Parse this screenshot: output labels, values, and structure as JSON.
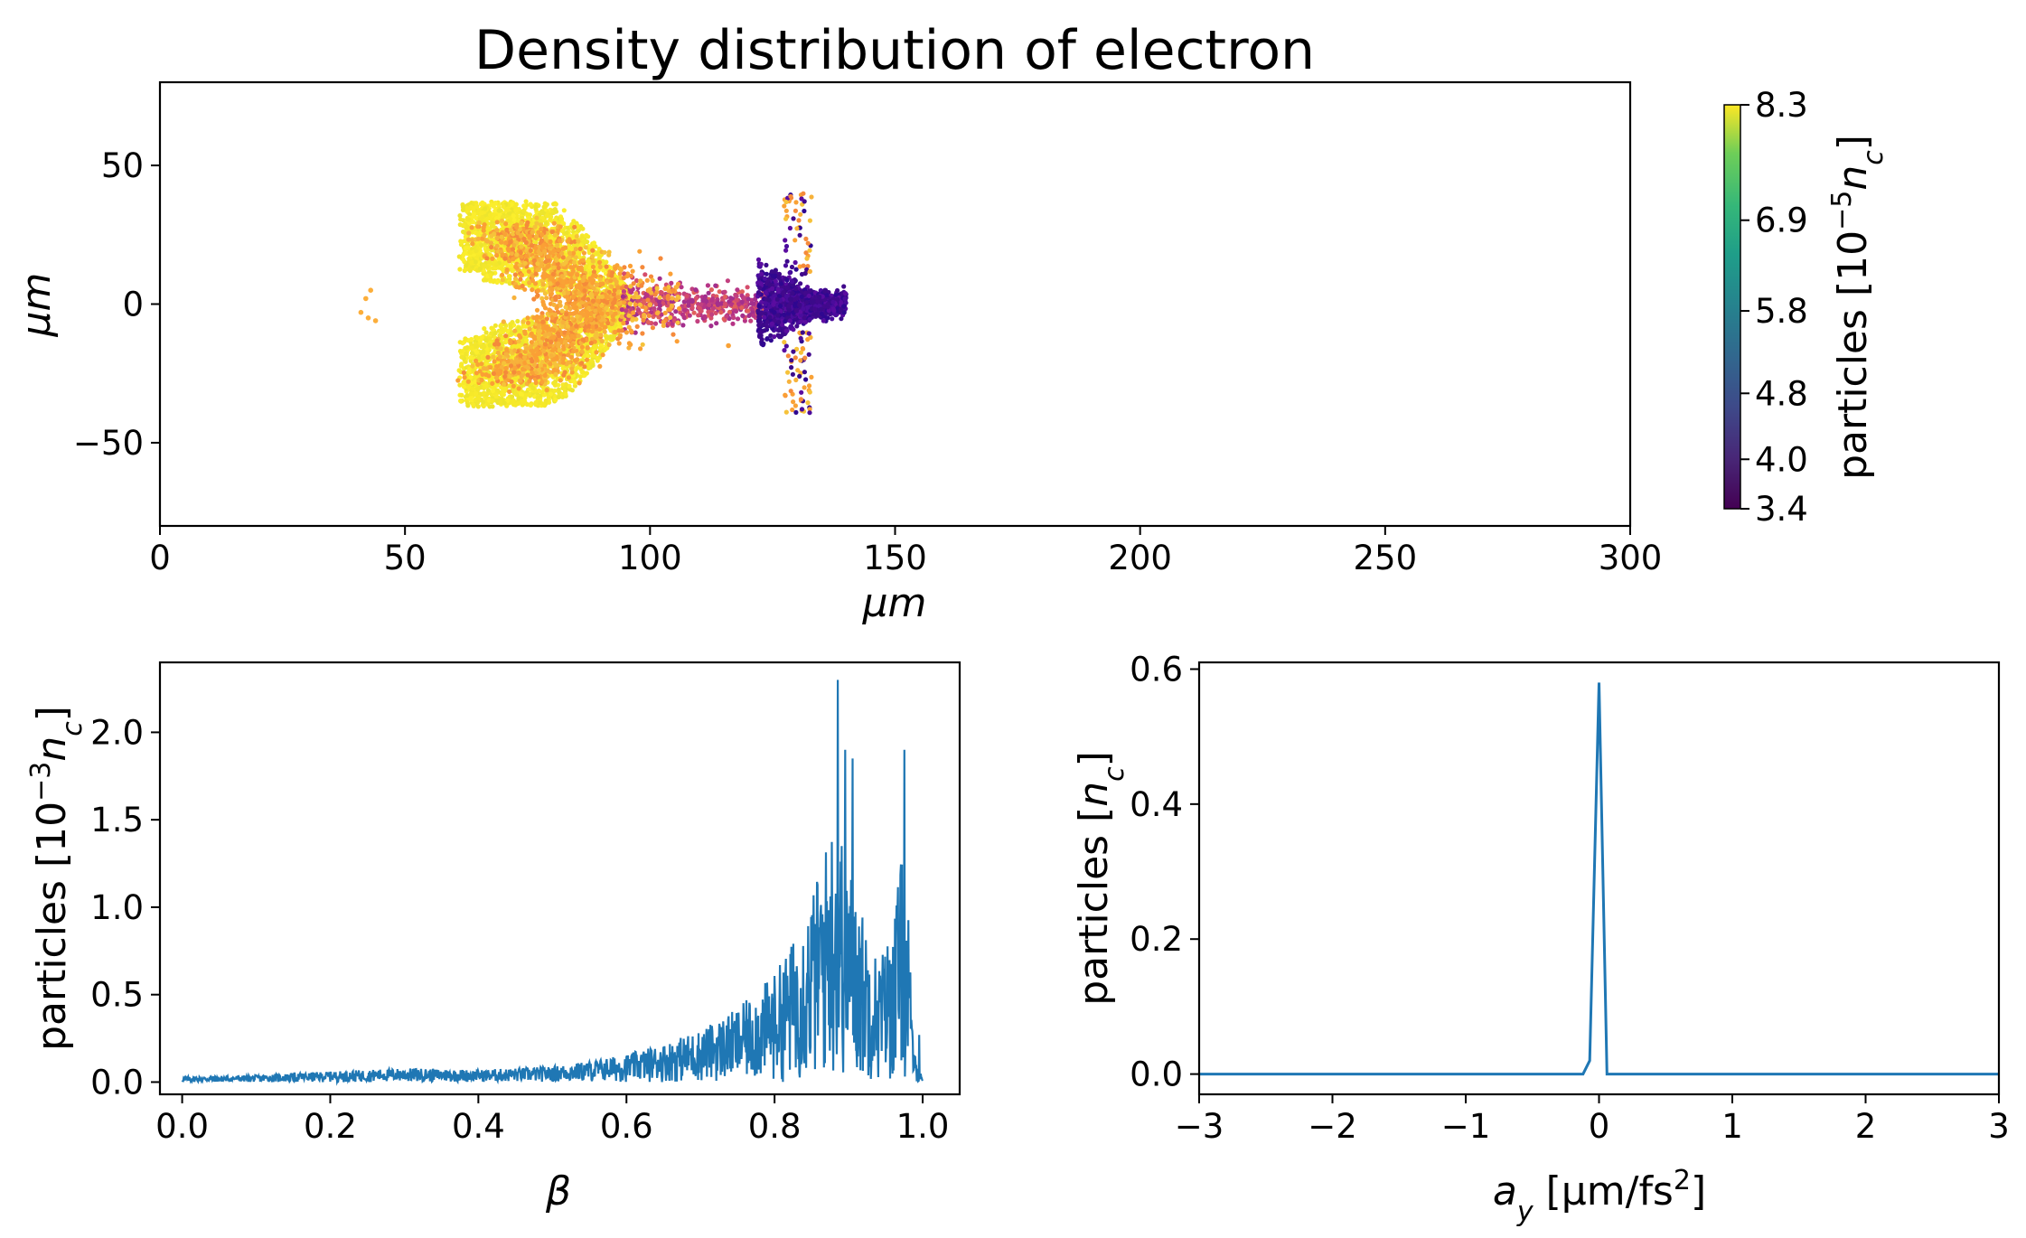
{
  "chart_data": [
    {
      "id": "scatter",
      "type": "scatter",
      "title": "Density distribution of electron",
      "xlabel": "μm",
      "ylabel": "μm",
      "xlim": [
        0,
        300
      ],
      "ylim": [
        -80,
        80
      ],
      "xticks": [
        0,
        50,
        100,
        150,
        200,
        250,
        300
      ],
      "xtick_labels": [
        "0",
        "50",
        "100",
        "150",
        "200",
        "250",
        "300"
      ],
      "yticks": [
        50,
        0,
        -50
      ],
      "ytick_labels": [
        "50",
        "0",
        "−50"
      ],
      "colormap": "viridis",
      "colorbar": {
        "label": "particles [10⁻⁵nc]",
        "label_main": "particles [10",
        "label_exp": "−5",
        "label_var": "n",
        "label_sub": "c",
        "label_close": "]",
        "vmin": 3.4,
        "vmax": 8.3,
        "ticks": [
          8.3,
          6.9,
          5.8,
          4.8,
          4.0,
          3.4
        ],
        "tick_labels": [
          "8.3",
          "6.9",
          "5.8",
          "4.8",
          "4.0",
          "3.4"
        ]
      },
      "point_groups": [
        {
          "name": "upper wing",
          "x_range": [
            62,
            95
          ],
          "y_range": [
            10,
            37
          ],
          "density_level": "high",
          "color": "#f7ec2a"
        },
        {
          "name": "lower wing",
          "x_range": [
            62,
            95
          ],
          "y_range": [
            -37,
            -10
          ],
          "density_level": "high",
          "color": "#f4ec29"
        },
        {
          "name": "core arc",
          "x_range": [
            66,
            98
          ],
          "y_range": [
            -30,
            28
          ],
          "density_level": "mid-high",
          "color": "#f39a3a"
        },
        {
          "name": "neck",
          "x_range": [
            95,
            122
          ],
          "y_range": [
            -10,
            10
          ],
          "density_level": "mid",
          "color": "#c7427a"
        },
        {
          "name": "head",
          "x_range": [
            121,
            140
          ],
          "y_range": [
            -18,
            18
          ],
          "density_level": "low",
          "color": "#430f8a"
        },
        {
          "name": "outliers",
          "x_points": [
            41,
            42,
            43,
            44
          ],
          "y_points": [
            -3,
            2,
            5,
            -6
          ],
          "color": "#fcae3a"
        }
      ]
    },
    {
      "id": "beta",
      "type": "line",
      "xlabel": "β",
      "ylabel": "particles [10⁻³nc]",
      "ylabel_main": "particles [10",
      "ylabel_exp": "−3",
      "ylabel_var": "n",
      "ylabel_sub": "c",
      "ylabel_close": "]",
      "xlim": [
        -0.03,
        1.05
      ],
      "ylim": [
        -0.07,
        2.4
      ],
      "xticks": [
        0.0,
        0.2,
        0.4,
        0.6,
        0.8,
        1.0
      ],
      "xtick_labels": [
        "0.0",
        "0.2",
        "0.4",
        "0.6",
        "0.8",
        "1.0"
      ],
      "yticks": [
        0.0,
        0.5,
        1.0,
        1.5,
        2.0
      ],
      "ytick_labels": [
        "0.0",
        "0.5",
        "1.0",
        "1.5",
        "2.0"
      ],
      "color": "#1f77b4",
      "envelope": {
        "x": [
          0.0,
          0.1,
          0.2,
          0.3,
          0.4,
          0.5,
          0.55,
          0.6,
          0.65,
          0.7,
          0.75,
          0.8,
          0.83,
          0.86,
          0.88,
          0.89,
          0.9,
          0.92,
          0.94,
          0.96,
          0.97,
          0.98,
          0.985,
          0.99,
          1.0
        ],
        "y": [
          0.03,
          0.04,
          0.06,
          0.08,
          0.07,
          0.09,
          0.12,
          0.16,
          0.22,
          0.3,
          0.42,
          0.62,
          0.85,
          1.2,
          1.55,
          1.45,
          1.3,
          0.95,
          0.7,
          0.9,
          1.3,
          1.1,
          0.4,
          0.15,
          0.02
        ]
      },
      "peaks": [
        {
          "x": 0.885,
          "y": 2.3
        },
        {
          "x": 0.895,
          "y": 1.9
        },
        {
          "x": 0.905,
          "y": 1.85
        },
        {
          "x": 0.975,
          "y": 1.9
        },
        {
          "x": 0.995,
          "y": 0.27
        }
      ]
    },
    {
      "id": "ay",
      "type": "line",
      "xlabel": "ay [μm/fs²]",
      "xlabel_var": "a",
      "xlabel_sub": "y",
      "xlabel_unit": " [μm/fs",
      "xlabel_exp": "2",
      "xlabel_close": "]",
      "ylabel": "particles [nc]",
      "ylabel_main": "particles [",
      "ylabel_var": "n",
      "ylabel_sub": "c",
      "ylabel_close": "]",
      "xlim": [
        -3,
        3
      ],
      "ylim": [
        -0.03,
        0.61
      ],
      "xticks": [
        -3,
        -2,
        -1,
        0,
        1,
        2,
        3
      ],
      "xtick_labels": [
        "−3",
        "−2",
        "−1",
        "0",
        "1",
        "2",
        "3"
      ],
      "yticks": [
        0.0,
        0.2,
        0.4,
        0.6
      ],
      "ytick_labels": [
        "0.0",
        "0.2",
        "0.4",
        "0.6"
      ],
      "color": "#1f77b4",
      "x": [
        -3,
        -0.12,
        -0.07,
        0.0,
        0.06,
        0.12,
        3
      ],
      "y": [
        0,
        0.0,
        0.02,
        0.58,
        0.0,
        0.0,
        0
      ]
    }
  ]
}
